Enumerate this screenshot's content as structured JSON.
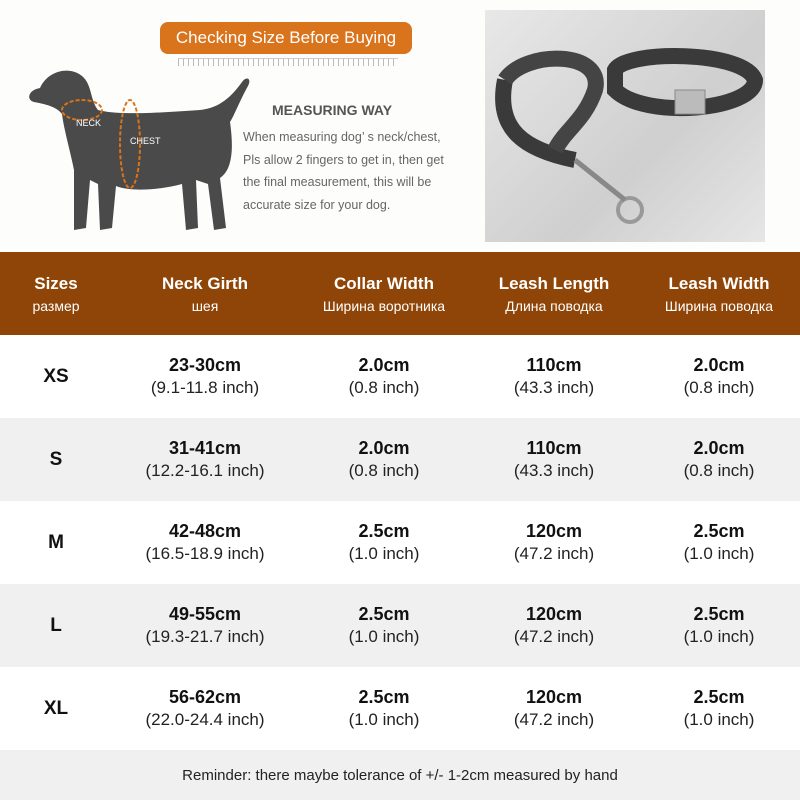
{
  "banner": "Checking Size Before Buying",
  "dog_labels": {
    "neck": "NECK",
    "chest": "CHEST"
  },
  "measuring": {
    "title": "MEASURING WAY",
    "lines": [
      "When measuring dog’ s neck/chest,",
      "Pls allow 2 fingers to get in, then get",
      "the final measurement, this will be",
      "accurate size for your dog."
    ]
  },
  "colors": {
    "header": "#8e4507",
    "banner": "#d9731c",
    "row_alt": "#f0f0f0"
  },
  "table": {
    "headers": [
      {
        "en": "Sizes",
        "ru": "размер"
      },
      {
        "en": "Neck Girth",
        "ru": "шея"
      },
      {
        "en": "Collar Width",
        "ru": "Ширина воротника"
      },
      {
        "en": "Leash Length",
        "ru": "Длина поводка"
      },
      {
        "en": "Leash Width",
        "ru": "Ширина поводка"
      }
    ],
    "rows": [
      {
        "size": "XS",
        "neck": [
          "23-30cm",
          "(9.1-11.8 inch)"
        ],
        "collar": [
          "2.0cm",
          "(0.8 inch)"
        ],
        "leash_len": [
          "110cm",
          "(43.3 inch)"
        ],
        "leash_w": [
          "2.0cm",
          "(0.8 inch)"
        ]
      },
      {
        "size": "S",
        "neck": [
          "31-41cm",
          "(12.2-16.1 inch)"
        ],
        "collar": [
          "2.0cm",
          "(0.8 inch)"
        ],
        "leash_len": [
          "110cm",
          "(43.3 inch)"
        ],
        "leash_w": [
          "2.0cm",
          "(0.8 inch)"
        ]
      },
      {
        "size": "M",
        "neck": [
          "42-48cm",
          "(16.5-18.9 inch)"
        ],
        "collar": [
          "2.5cm",
          "(1.0 inch)"
        ],
        "leash_len": [
          "120cm",
          "(47.2 inch)"
        ],
        "leash_w": [
          "2.5cm",
          "(1.0 inch)"
        ]
      },
      {
        "size": "L",
        "neck": [
          "49-55cm",
          "(19.3-21.7 inch)"
        ],
        "collar": [
          "2.5cm",
          "(1.0 inch)"
        ],
        "leash_len": [
          "120cm",
          "(47.2 inch)"
        ],
        "leash_w": [
          "2.5cm",
          "(1.0 inch)"
        ]
      },
      {
        "size": "XL",
        "neck": [
          "56-62cm",
          "(22.0-24.4 inch)"
        ],
        "collar": [
          "2.5cm",
          "(1.0 inch)"
        ],
        "leash_len": [
          "120cm",
          "(47.2 inch)"
        ],
        "leash_w": [
          "2.5cm",
          "(1.0 inch)"
        ]
      }
    ]
  },
  "reminder": "Reminder: there maybe tolerance of +/- 1-2cm measured by hand"
}
